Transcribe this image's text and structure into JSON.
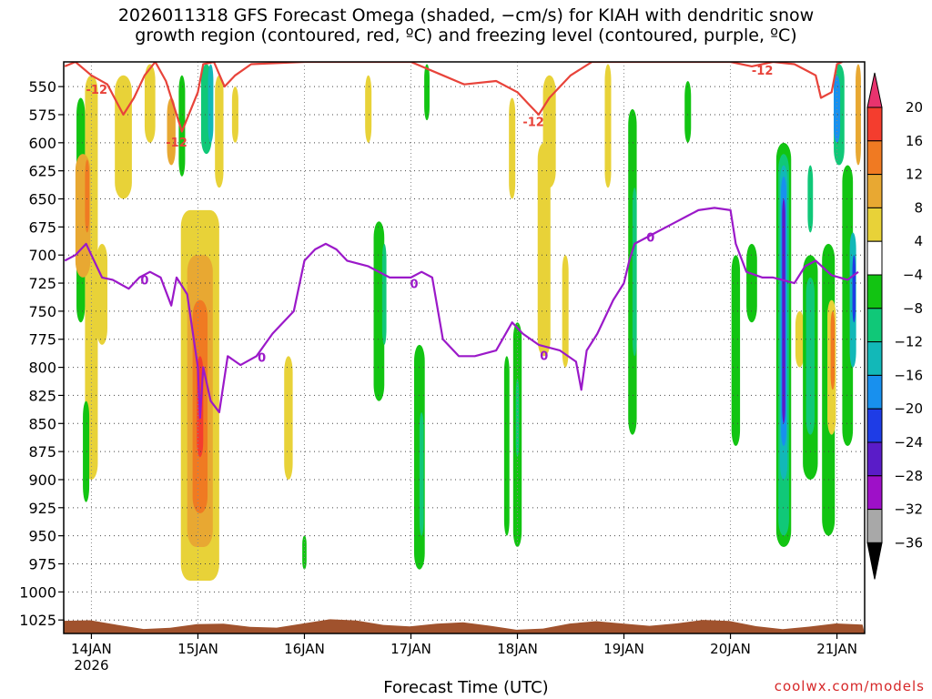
{
  "chart_data": {
    "type": "heatmap",
    "title_line1": "2026011318 GFS Forecast Omega (shaded, −cm/s) for KIAH with dendritic snow",
    "title_line2": "growth region (contoured, red, ºC) and freezing level (contoured, purple, ºC)",
    "xlabel": "Forecast Time (UTC)",
    "credit": "coolwx.com/models",
    "y_axis": {
      "label": "",
      "ticks": [
        550,
        575,
        600,
        625,
        650,
        675,
        700,
        725,
        750,
        775,
        800,
        825,
        850,
        875,
        900,
        925,
        950,
        975,
        1000,
        1025
      ],
      "range": [
        1037,
        528
      ]
    },
    "x_axis": {
      "start": "2026-01-13T18",
      "end": "2026-01-21T06",
      "ticks": [
        {
          "day": 14,
          "label": "14JAN",
          "sub": "2026"
        },
        {
          "day": 15,
          "label": "15JAN",
          "sub": ""
        },
        {
          "day": 16,
          "label": "16JAN",
          "sub": ""
        },
        {
          "day": 17,
          "label": "17JAN",
          "sub": ""
        },
        {
          "day": 18,
          "label": "18JAN",
          "sub": ""
        },
        {
          "day": 19,
          "label": "19JAN",
          "sub": ""
        },
        {
          "day": 20,
          "label": "20JAN",
          "sub": ""
        },
        {
          "day": 21,
          "label": "21JAN",
          "sub": ""
        }
      ]
    },
    "colorbar": {
      "levels": [
        20,
        16,
        12,
        8,
        4,
        -4,
        -8,
        -12,
        -16,
        -20,
        -24,
        -28,
        -32,
        -36
      ],
      "colors": [
        "#e8336e",
        "#f43d2e",
        "#f07a22",
        "#e8a832",
        "#e8d238",
        "#ffffff",
        "#12c412",
        "#10c878",
        "#12b8b8",
        "#1890ee",
        "#1e3ce6",
        "#5a1cc8",
        "#9e10c8",
        "#a8a8a8",
        "#000000"
      ]
    },
    "omega_cells": [
      {
        "t": 14.0,
        "dt": 0.12,
        "p0": 540,
        "p1": 900,
        "v": 6
      },
      {
        "t": 13.9,
        "dt": 0.08,
        "p0": 560,
        "p1": 760,
        "v": -6
      },
      {
        "t": 13.95,
        "dt": 0.06,
        "p0": 830,
        "p1": 920,
        "v": -6
      },
      {
        "t": 13.92,
        "dt": 0.14,
        "p0": 610,
        "p1": 720,
        "v": 10
      },
      {
        "t": 13.96,
        "dt": 0.04,
        "p0": 615,
        "p1": 680,
        "v": 14
      },
      {
        "t": 14.1,
        "dt": 0.1,
        "p0": 690,
        "p1": 780,
        "v": 6
      },
      {
        "t": 14.3,
        "dt": 0.16,
        "p0": 540,
        "p1": 650,
        "v": 6
      },
      {
        "t": 14.55,
        "dt": 0.1,
        "p0": 530,
        "p1": 600,
        "v": 6
      },
      {
        "t": 14.75,
        "dt": 0.08,
        "p0": 560,
        "p1": 620,
        "v": 10
      },
      {
        "t": 14.85,
        "dt": 0.06,
        "p0": 540,
        "p1": 630,
        "v": -6
      },
      {
        "t": 15.02,
        "dt": 0.36,
        "p0": 660,
        "p1": 990,
        "v": 6
      },
      {
        "t": 15.02,
        "dt": 0.24,
        "p0": 700,
        "p1": 960,
        "v": 10
      },
      {
        "t": 15.02,
        "dt": 0.14,
        "p0": 740,
        "p1": 930,
        "v": 14
      },
      {
        "t": 15.02,
        "dt": 0.06,
        "p0": 790,
        "p1": 880,
        "v": 18
      },
      {
        "t": 15.08,
        "dt": 0.1,
        "p0": 530,
        "p1": 610,
        "v": -10
      },
      {
        "t": 15.12,
        "dt": 0.05,
        "p0": 530,
        "p1": 600,
        "v": -14
      },
      {
        "t": 15.2,
        "dt": 0.08,
        "p0": 540,
        "p1": 640,
        "v": 6
      },
      {
        "t": 15.35,
        "dt": 0.06,
        "p0": 550,
        "p1": 600,
        "v": 6
      },
      {
        "t": 15.85,
        "dt": 0.08,
        "p0": 790,
        "p1": 900,
        "v": 6
      },
      {
        "t": 16.0,
        "dt": 0.04,
        "p0": 950,
        "p1": 980,
        "v": -6
      },
      {
        "t": 16.7,
        "dt": 0.1,
        "p0": 670,
        "p1": 830,
        "v": -6
      },
      {
        "t": 16.75,
        "dt": 0.04,
        "p0": 690,
        "p1": 780,
        "v": -10
      },
      {
        "t": 17.08,
        "dt": 0.1,
        "p0": 780,
        "p1": 980,
        "v": -6
      },
      {
        "t": 17.1,
        "dt": 0.04,
        "p0": 840,
        "p1": 950,
        "v": -10
      },
      {
        "t": 16.6,
        "dt": 0.06,
        "p0": 540,
        "p1": 600,
        "v": 6
      },
      {
        "t": 17.15,
        "dt": 0.05,
        "p0": 530,
        "p1": 580,
        "v": -6
      },
      {
        "t": 17.9,
        "dt": 0.05,
        "p0": 790,
        "p1": 950,
        "v": -6
      },
      {
        "t": 17.95,
        "dt": 0.06,
        "p0": 560,
        "p1": 650,
        "v": 6
      },
      {
        "t": 18.0,
        "dt": 0.08,
        "p0": 760,
        "p1": 960,
        "v": -6
      },
      {
        "t": 18.0,
        "dt": 0.03,
        "p0": 810,
        "p1": 880,
        "v": -12
      },
      {
        "t": 18.25,
        "dt": 0.12,
        "p0": 600,
        "p1": 790,
        "v": 6
      },
      {
        "t": 18.3,
        "dt": 0.12,
        "p0": 540,
        "p1": 640,
        "v": 6
      },
      {
        "t": 18.45,
        "dt": 0.06,
        "p0": 700,
        "p1": 800,
        "v": 6
      },
      {
        "t": 18.85,
        "dt": 0.06,
        "p0": 530,
        "p1": 640,
        "v": 6
      },
      {
        "t": 19.08,
        "dt": 0.08,
        "p0": 570,
        "p1": 860,
        "v": -6
      },
      {
        "t": 19.1,
        "dt": 0.04,
        "p0": 640,
        "p1": 790,
        "v": -10
      },
      {
        "t": 19.6,
        "dt": 0.06,
        "p0": 545,
        "p1": 600,
        "v": -6
      },
      {
        "t": 20.05,
        "dt": 0.08,
        "p0": 700,
        "p1": 870,
        "v": -6
      },
      {
        "t": 20.2,
        "dt": 0.1,
        "p0": 690,
        "p1": 760,
        "v": -6
      },
      {
        "t": 20.5,
        "dt": 0.14,
        "p0": 600,
        "p1": 960,
        "v": -6
      },
      {
        "t": 20.5,
        "dt": 0.1,
        "p0": 610,
        "p1": 950,
        "v": -10
      },
      {
        "t": 20.5,
        "dt": 0.07,
        "p0": 620,
        "p1": 900,
        "v": -16
      },
      {
        "t": 20.5,
        "dt": 0.05,
        "p0": 630,
        "p1": 870,
        "v": -20
      },
      {
        "t": 20.5,
        "dt": 0.03,
        "p0": 650,
        "p1": 850,
        "v": -28
      },
      {
        "t": 20.65,
        "dt": 0.08,
        "p0": 750,
        "p1": 800,
        "v": 6
      },
      {
        "t": 20.75,
        "dt": 0.14,
        "p0": 700,
        "p1": 900,
        "v": -6
      },
      {
        "t": 20.75,
        "dt": 0.08,
        "p0": 720,
        "p1": 860,
        "v": -12
      },
      {
        "t": 20.75,
        "dt": 0.05,
        "p0": 620,
        "p1": 680,
        "v": -12
      },
      {
        "t": 20.92,
        "dt": 0.12,
        "p0": 690,
        "p1": 950,
        "v": -6
      },
      {
        "t": 20.95,
        "dt": 0.08,
        "p0": 740,
        "p1": 860,
        "v": 6
      },
      {
        "t": 20.96,
        "dt": 0.04,
        "p0": 750,
        "p1": 820,
        "v": 12
      },
      {
        "t": 21.02,
        "dt": 0.1,
        "p0": 530,
        "p1": 620,
        "v": -12
      },
      {
        "t": 21.0,
        "dt": 0.06,
        "p0": 540,
        "p1": 600,
        "v": -20
      },
      {
        "t": 21.1,
        "dt": 0.1,
        "p0": 620,
        "p1": 870,
        "v": -6
      },
      {
        "t": 21.15,
        "dt": 0.06,
        "p0": 680,
        "p1": 800,
        "v": -16
      },
      {
        "t": 21.16,
        "dt": 0.03,
        "p0": 700,
        "p1": 760,
        "v": -24
      },
      {
        "t": 21.2,
        "dt": 0.05,
        "p0": 530,
        "p1": 620,
        "v": 10
      }
    ],
    "dgz_line": {
      "label": "-12",
      "points": [
        [
          13.75,
          532
        ],
        [
          13.85,
          528
        ],
        [
          14.0,
          540
        ],
        [
          14.15,
          548
        ],
        [
          14.3,
          575
        ],
        [
          14.4,
          560
        ],
        [
          14.5,
          540
        ],
        [
          14.6,
          528
        ],
        [
          14.7,
          545
        ],
        [
          14.85,
          590
        ],
        [
          15.0,
          555
        ],
        [
          15.05,
          530
        ],
        [
          15.15,
          528
        ],
        [
          15.25,
          550
        ],
        [
          15.35,
          540
        ],
        [
          15.5,
          530
        ],
        [
          16.0,
          528
        ],
        [
          16.5,
          528
        ],
        [
          17.0,
          528
        ],
        [
          17.3,
          540
        ],
        [
          17.5,
          548
        ],
        [
          17.8,
          545
        ],
        [
          18.0,
          555
        ],
        [
          18.1,
          565
        ],
        [
          18.2,
          575
        ],
        [
          18.3,
          560
        ],
        [
          18.5,
          540
        ],
        [
          18.7,
          528
        ],
        [
          19.0,
          528
        ],
        [
          20.0,
          528
        ],
        [
          20.2,
          532
        ],
        [
          20.4,
          528
        ],
        [
          20.6,
          530
        ],
        [
          20.8,
          540
        ],
        [
          20.85,
          560
        ],
        [
          20.95,
          555
        ],
        [
          21.0,
          530
        ],
        [
          21.05,
          528
        ]
      ],
      "label_at": [
        [
          14.05,
          553
        ],
        [
          14.8,
          600
        ],
        [
          18.15,
          582
        ],
        [
          20.3,
          536
        ]
      ]
    },
    "freezing_line": {
      "label": "0",
      "points": [
        [
          13.75,
          705
        ],
        [
          13.85,
          700
        ],
        [
          13.95,
          690
        ],
        [
          14.0,
          700
        ],
        [
          14.1,
          720
        ],
        [
          14.2,
          722
        ],
        [
          14.35,
          730
        ],
        [
          14.45,
          720
        ],
        [
          14.55,
          715
        ],
        [
          14.65,
          720
        ],
        [
          14.75,
          745
        ],
        [
          14.8,
          720
        ],
        [
          14.9,
          735
        ],
        [
          15.0,
          800
        ],
        [
          15.02,
          845
        ],
        [
          15.05,
          800
        ],
        [
          15.12,
          830
        ],
        [
          15.2,
          840
        ],
        [
          15.28,
          790
        ],
        [
          15.4,
          798
        ],
        [
          15.55,
          790
        ],
        [
          15.7,
          770
        ],
        [
          15.9,
          750
        ],
        [
          16.0,
          705
        ],
        [
          16.1,
          695
        ],
        [
          16.2,
          690
        ],
        [
          16.3,
          695
        ],
        [
          16.4,
          705
        ],
        [
          16.6,
          710
        ],
        [
          16.8,
          720
        ],
        [
          17.0,
          720
        ],
        [
          17.1,
          715
        ],
        [
          17.2,
          720
        ],
        [
          17.3,
          775
        ],
        [
          17.45,
          790
        ],
        [
          17.6,
          790
        ],
        [
          17.8,
          785
        ],
        [
          17.95,
          760
        ],
        [
          18.05,
          770
        ],
        [
          18.2,
          780
        ],
        [
          18.4,
          785
        ],
        [
          18.55,
          795
        ],
        [
          18.6,
          820
        ],
        [
          18.65,
          785
        ],
        [
          18.75,
          770
        ],
        [
          18.9,
          740
        ],
        [
          19.0,
          725
        ],
        [
          19.05,
          705
        ],
        [
          19.1,
          690
        ],
        [
          19.3,
          680
        ],
        [
          19.5,
          670
        ],
        [
          19.6,
          665
        ],
        [
          19.7,
          660
        ],
        [
          19.85,
          658
        ],
        [
          20.0,
          660
        ],
        [
          20.05,
          690
        ],
        [
          20.15,
          715
        ],
        [
          20.3,
          720
        ],
        [
          20.4,
          720
        ],
        [
          20.6,
          725
        ],
        [
          20.7,
          710
        ],
        [
          20.8,
          705
        ],
        [
          20.95,
          718
        ],
        [
          21.1,
          722
        ],
        [
          21.2,
          715
        ]
      ],
      "label_at": [
        [
          14.5,
          723
        ],
        [
          15.6,
          792
        ],
        [
          17.03,
          726
        ],
        [
          18.25,
          790
        ],
        [
          19.25,
          685
        ]
      ]
    }
  }
}
